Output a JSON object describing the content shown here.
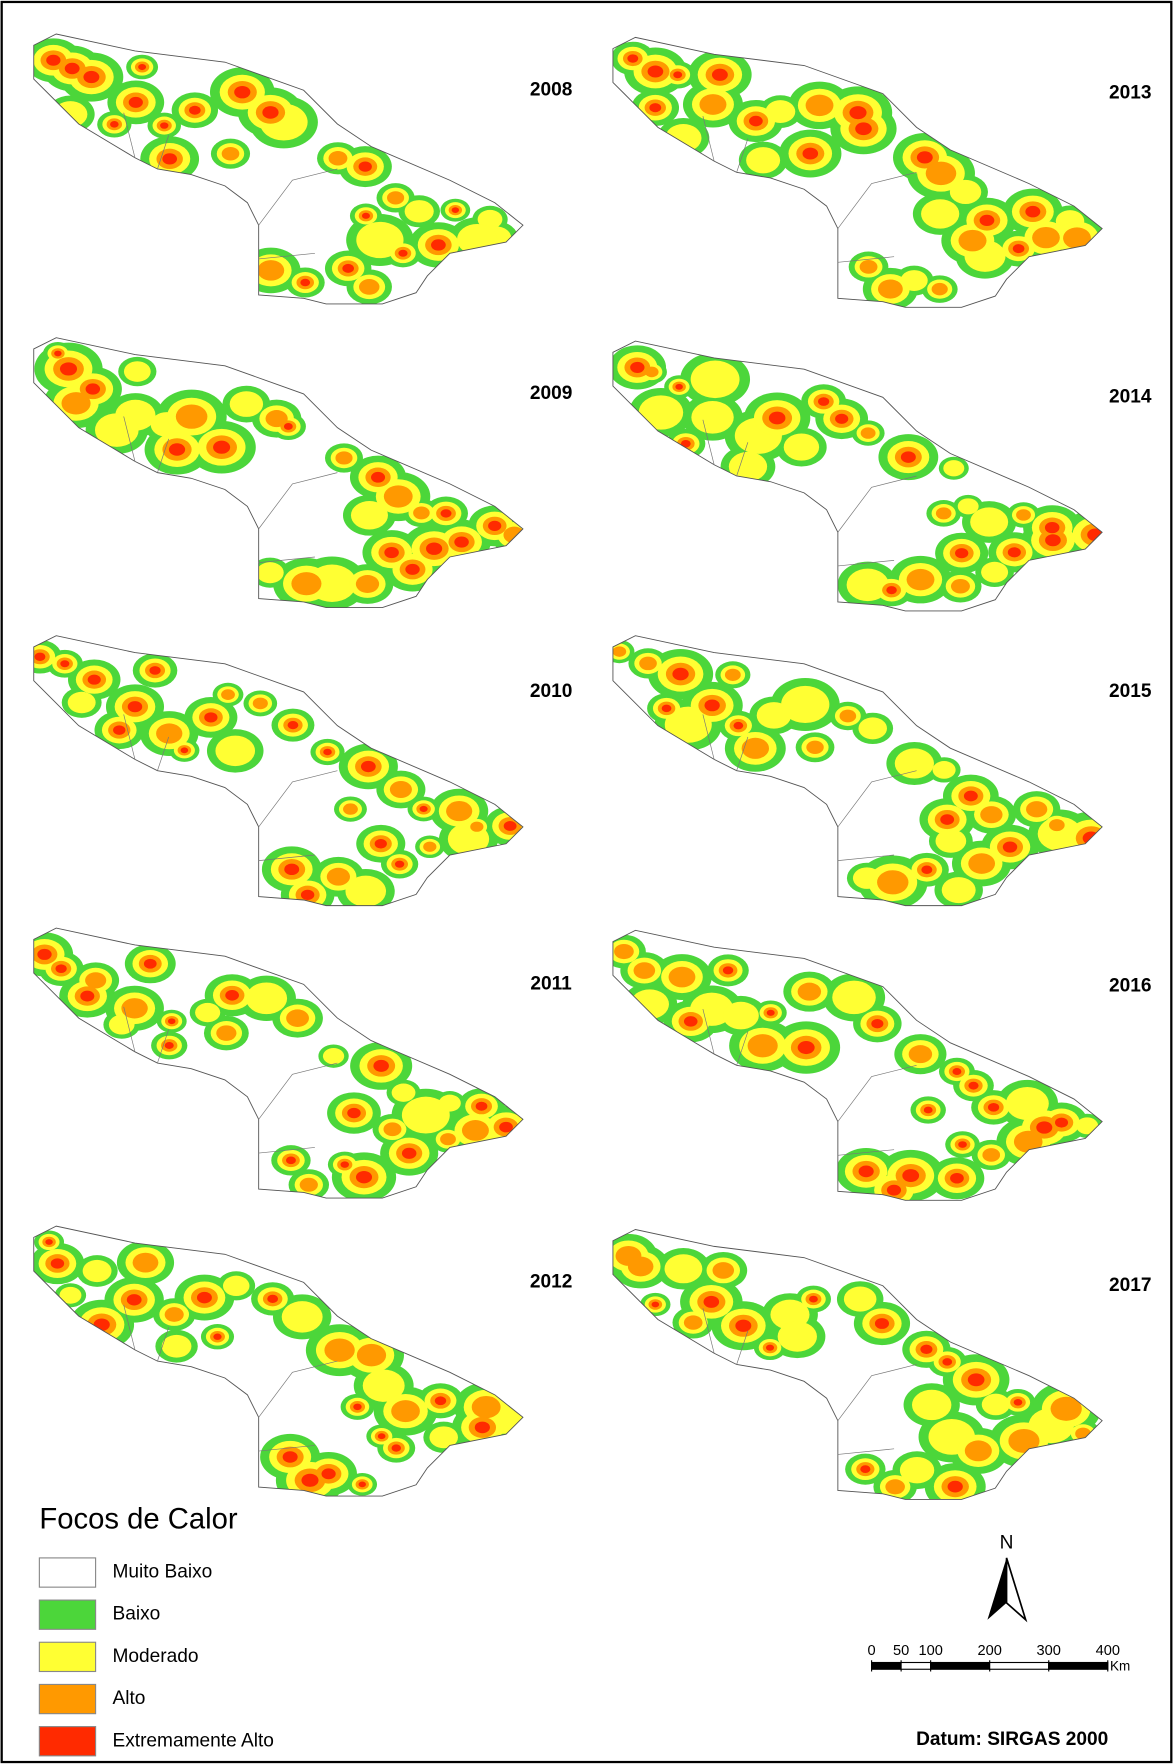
{
  "panels": [
    {
      "year": "2008"
    },
    {
      "year": "2009"
    },
    {
      "year": "2010"
    },
    {
      "year": "2011"
    },
    {
      "year": "2012"
    },
    {
      "year": "2013"
    },
    {
      "year": "2014"
    },
    {
      "year": "2015"
    },
    {
      "year": "2016"
    },
    {
      "year": "2017"
    }
  ],
  "legend": {
    "title": "Focos de Calor",
    "items": [
      {
        "label": "Muito Baixo",
        "color": "#ffffff"
      },
      {
        "label": "Baixo",
        "color": "#4cd63a"
      },
      {
        "label": "Moderado",
        "color": "#ffff33"
      },
      {
        "label": "Alto",
        "color": "#ff9900"
      },
      {
        "label": "Extremamente Alto",
        "color": "#ff2a00"
      }
    ]
  },
  "north": "N",
  "scale_bar": {
    "xlim": [
      0,
      400
    ],
    "ticks": [
      0,
      50,
      100,
      200,
      300,
      400
    ],
    "unit": "Km"
  },
  "datum": "Datum: SIRGAS 2000"
}
